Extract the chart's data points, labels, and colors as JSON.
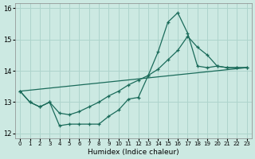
{
  "xlabel": "Humidex (Indice chaleur)",
  "bg_color": "#cce9e2",
  "grid_color": "#aed4cc",
  "line_color": "#1a6b5a",
  "xlim": [
    -0.5,
    23.5
  ],
  "ylim": [
    11.85,
    16.15
  ],
  "yticks": [
    12,
    13,
    14,
    15,
    16
  ],
  "xticks": [
    0,
    1,
    2,
    3,
    4,
    5,
    6,
    7,
    8,
    9,
    10,
    11,
    12,
    13,
    14,
    15,
    16,
    17,
    18,
    19,
    20,
    21,
    22,
    23
  ],
  "line1_x": [
    0,
    1,
    2,
    3,
    4,
    5,
    6,
    7,
    8,
    9,
    10,
    11,
    12,
    13,
    14,
    15,
    16,
    17,
    18,
    19,
    20,
    21,
    22,
    23
  ],
  "line1_y": [
    13.35,
    13.0,
    12.85,
    13.0,
    12.25,
    12.3,
    12.3,
    12.3,
    12.3,
    12.55,
    12.75,
    13.1,
    13.15,
    13.85,
    14.6,
    15.55,
    15.85,
    15.2,
    14.15,
    14.1,
    14.15,
    14.1,
    14.1,
    14.1
  ],
  "line2_x": [
    0,
    1,
    2,
    3,
    4,
    5,
    6,
    7,
    8,
    9,
    10,
    11,
    12,
    13,
    14,
    15,
    16,
    17,
    18,
    19,
    20,
    21,
    22,
    23
  ],
  "line2_y": [
    13.35,
    13.0,
    12.85,
    13.0,
    12.65,
    12.6,
    12.7,
    12.85,
    13.0,
    13.2,
    13.35,
    13.55,
    13.7,
    13.85,
    14.05,
    14.35,
    14.65,
    15.1,
    14.75,
    14.5,
    14.15,
    14.1,
    14.1,
    14.1
  ],
  "line3_x": [
    0,
    23
  ],
  "line3_y": [
    13.35,
    14.1
  ]
}
